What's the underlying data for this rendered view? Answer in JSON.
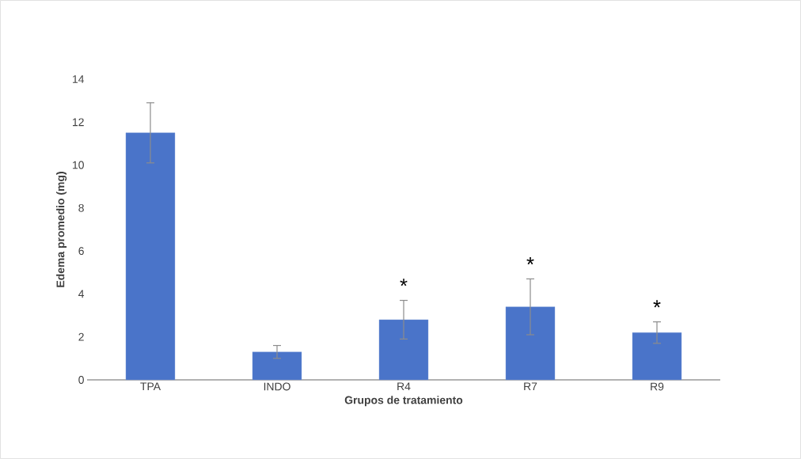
{
  "chart_data": {
    "type": "bar",
    "xlabel": "Grupos de tratamiento",
    "ylabel": "Edema promedio  (mg)",
    "categories": [
      "TPA",
      "INDO",
      "R4",
      "R7",
      "R9"
    ],
    "values": [
      11.5,
      1.3,
      2.8,
      3.4,
      2.2
    ],
    "errors": [
      1.4,
      0.3,
      0.9,
      1.3,
      0.5
    ],
    "color": "#4a74c9",
    "ylim": [
      0,
      14
    ],
    "yticks": [
      0,
      2,
      4,
      6,
      8,
      10,
      12,
      14
    ],
    "grid": false,
    "annotations": [
      "*",
      "*",
      "*"
    ]
  }
}
